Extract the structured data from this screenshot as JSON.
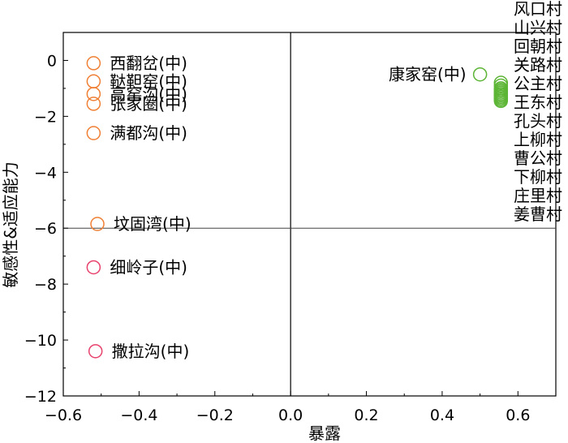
{
  "chart_data": {
    "type": "scatter",
    "xlabel": "暴露",
    "ylabel": "敏感性&适应能力",
    "xlim": [
      -0.6,
      0.7
    ],
    "ylim": [
      -12,
      1
    ],
    "x_ticks": [
      "−0.6",
      "−0.4",
      "−0.2",
      "0.0",
      "0.2",
      "0.4",
      "0.6"
    ],
    "y_ticks": [
      "0",
      "−2",
      "−4",
      "−6",
      "−8",
      "−10",
      "−12"
    ],
    "reference_lines": {
      "x": 0.0,
      "y": -6
    },
    "grid": false,
    "legend": "none",
    "colors": {
      "orange": "#f07f34",
      "crimson": "#e8416b",
      "green": "#5cb535"
    },
    "points": [
      {
        "label": "西翻岔(中)",
        "x": -0.52,
        "y": -0.1,
        "color": "#f07f34"
      },
      {
        "label": "鞑靼窑(中)",
        "x": -0.52,
        "y": -0.75,
        "color": "#f07f34"
      },
      {
        "label": "高窑沟(中)",
        "x": -0.52,
        "y": -1.2,
        "color": "#f07f34"
      },
      {
        "label": "张家圈(中)",
        "x": -0.52,
        "y": -1.55,
        "color": "#f07f34"
      },
      {
        "label": "满都沟(中)",
        "x": -0.52,
        "y": -2.6,
        "color": "#f07f34"
      },
      {
        "label": "坟固湾(中)",
        "x": -0.51,
        "y": -5.85,
        "color": "#f07f34"
      },
      {
        "label": "细岭子(中)",
        "x": -0.52,
        "y": -7.4,
        "color": "#e8416b"
      },
      {
        "label": "撒拉沟(中)",
        "x": -0.515,
        "y": -10.4,
        "color": "#e8416b"
      },
      {
        "label": "康家窑(中)",
        "x": 0.5,
        "y": -0.5,
        "color": "#5cb535"
      },
      {
        "label": "风口村",
        "x": 0.555,
        "y": -0.8,
        "color": "#5cb535"
      },
      {
        "label": "山兴村",
        "x": 0.555,
        "y": -0.9,
        "color": "#5cb535"
      },
      {
        "label": "回朝村",
        "x": 0.555,
        "y": -1.0,
        "color": "#5cb535"
      },
      {
        "label": "关路村",
        "x": 0.555,
        "y": -1.05,
        "color": "#5cb535"
      },
      {
        "label": "公主村",
        "x": 0.555,
        "y": -1.1,
        "color": "#5cb535"
      },
      {
        "label": "王东村",
        "x": 0.555,
        "y": -1.15,
        "color": "#5cb535"
      },
      {
        "label": "孔头村",
        "x": 0.555,
        "y": -1.2,
        "color": "#5cb535"
      },
      {
        "label": "上柳村",
        "x": 0.555,
        "y": -1.25,
        "color": "#5cb535"
      },
      {
        "label": "曹公村",
        "x": 0.555,
        "y": -1.3,
        "color": "#5cb535"
      },
      {
        "label": "下柳村",
        "x": 0.555,
        "y": -1.35,
        "color": "#5cb535"
      },
      {
        "label": "庄里村",
        "x": 0.555,
        "y": -1.4,
        "color": "#5cb535"
      },
      {
        "label": "姜曹村",
        "x": 0.555,
        "y": -1.45,
        "color": "#5cb535"
      }
    ]
  }
}
